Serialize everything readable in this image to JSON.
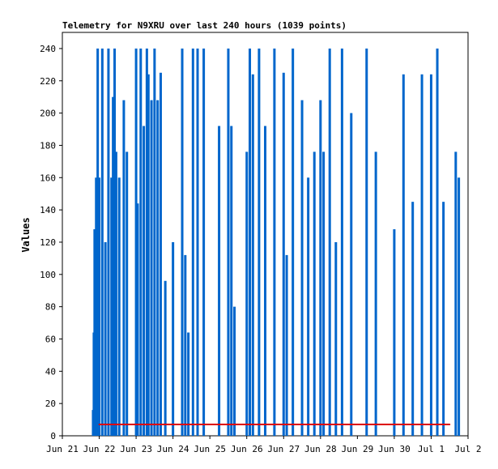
{
  "chart_data": {
    "type": "bar",
    "title": "Telemetry for N9XRU over last 240 hours (1039 points)",
    "xlabel": "",
    "ylabel": "Values",
    "ylim": [
      0,
      250
    ],
    "xlim": [
      "2024-06-21T00:00",
      "2024-07-02T00:00"
    ],
    "x_ticks": [
      "Jun 21",
      "Jun 22",
      "Jun 23",
      "Jun 24",
      "Jun 25",
      "Jun 26",
      "Jun 27",
      "Jun 28",
      "Jun 29",
      "Jun 30",
      "Jul 1",
      "Jul 2"
    ],
    "y_ticks": [
      0,
      20,
      40,
      60,
      80,
      100,
      120,
      140,
      160,
      180,
      200,
      220,
      240
    ],
    "grid": false,
    "colors": {
      "series_blue": "#0066cc",
      "series_red": "#dd0000",
      "axis": "#000000"
    },
    "series": [
      {
        "color": "#0066cc",
        "x": [
          "2024-06-21T20:00",
          "2024-06-21T20:30",
          "2024-06-21T21:00",
          "2024-06-21T22:00",
          "2024-06-21T23:00",
          "2024-06-22T00:00",
          "2024-06-22T02:00",
          "2024-06-22T04:00",
          "2024-06-22T06:00",
          "2024-06-22T08:00",
          "2024-06-22T09:00",
          "2024-06-22T10:00",
          "2024-06-22T11:00",
          "2024-06-22T13:00",
          "2024-06-22T16:00",
          "2024-06-22T18:00",
          "2024-06-23T00:00",
          "2024-06-23T01:00",
          "2024-06-23T03:00",
          "2024-06-23T05:00",
          "2024-06-23T07:00",
          "2024-06-23T08:00",
          "2024-06-23T10:00",
          "2024-06-23T12:00",
          "2024-06-23T14:00",
          "2024-06-23T16:00",
          "2024-06-23T19:00",
          "2024-06-24T00:00",
          "2024-06-24T06:00",
          "2024-06-24T08:00",
          "2024-06-24T10:00",
          "2024-06-24T13:00",
          "2024-06-24T16:00",
          "2024-06-24T20:00",
          "2024-06-25T06:00",
          "2024-06-25T12:00",
          "2024-06-25T14:00",
          "2024-06-25T16:00",
          "2024-06-26T00:00",
          "2024-06-26T02:00",
          "2024-06-26T04:00",
          "2024-06-26T08:00",
          "2024-06-26T12:00",
          "2024-06-26T18:00",
          "2024-06-27T00:00",
          "2024-06-27T02:00",
          "2024-06-27T06:00",
          "2024-06-27T12:00",
          "2024-06-27T16:00",
          "2024-06-27T20:00",
          "2024-06-28T00:00",
          "2024-06-28T02:00",
          "2024-06-28T06:00",
          "2024-06-28T10:00",
          "2024-06-28T14:00",
          "2024-06-28T20:00",
          "2024-06-29T06:00",
          "2024-06-29T12:00",
          "2024-06-30T00:00",
          "2024-06-30T06:00",
          "2024-06-30T12:00",
          "2024-06-30T18:00",
          "2024-07-01T00:00",
          "2024-07-01T04:00",
          "2024-07-01T08:00",
          "2024-07-01T16:00",
          "2024-07-01T18:00"
        ],
        "values": [
          16,
          64,
          128,
          160,
          240,
          160,
          240,
          120,
          240,
          160,
          210,
          240,
          176,
          160,
          208,
          176,
          240,
          144,
          240,
          192,
          240,
          224,
          208,
          240,
          208,
          225,
          96,
          120,
          240,
          112,
          64,
          240,
          240,
          240,
          192,
          240,
          192,
          80,
          176,
          240,
          224,
          240,
          192,
          240,
          225,
          112,
          240,
          208,
          160,
          176,
          208,
          176,
          240,
          120,
          240,
          200,
          240,
          176,
          128,
          224,
          145,
          224,
          224,
          240,
          145,
          176,
          160
        ]
      },
      {
        "color": "#dd0000",
        "x": [
          "2024-06-22T00:00",
          "2024-06-24T00:00",
          "2024-06-26T00:00",
          "2024-06-28T00:00",
          "2024-06-30T00:00",
          "2024-07-01T12:00"
        ],
        "values": [
          7,
          7,
          7,
          7,
          7,
          7
        ]
      }
    ]
  }
}
